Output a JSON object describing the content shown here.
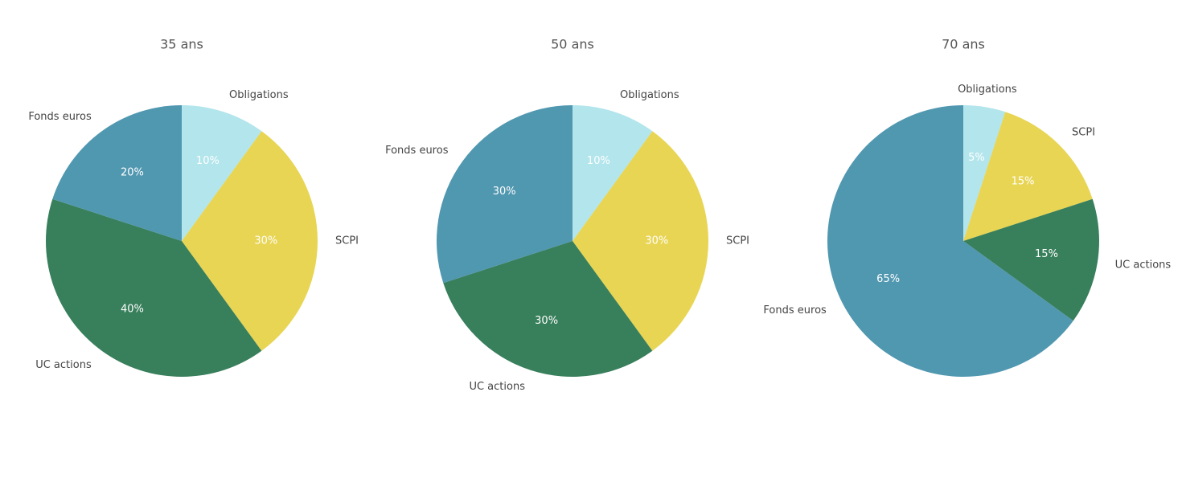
{
  "chart_data": [
    {
      "type": "pie",
      "title": "35 ans",
      "categories": [
        "Obligations",
        "SCPI",
        "UC actions",
        "Fonds euros"
      ],
      "values": [
        10,
        30,
        40,
        20
      ],
      "value_labels": [
        "10%",
        "30%",
        "40%",
        "20%"
      ],
      "colors": [
        "#b3e5ec",
        "#e8d554",
        "#387f5b",
        "#5097b0"
      ]
    },
    {
      "type": "pie",
      "title": "50 ans",
      "categories": [
        "Obligations",
        "SCPI",
        "UC actions",
        "Fonds euros"
      ],
      "values": [
        10,
        30,
        30,
        30
      ],
      "value_labels": [
        "10%",
        "30%",
        "30%",
        "30%"
      ],
      "colors": [
        "#b3e5ec",
        "#e8d554",
        "#387f5b",
        "#5097b0"
      ]
    },
    {
      "type": "pie",
      "title": "70 ans",
      "categories": [
        "Obligations",
        "SCPI",
        "UC actions",
        "Fonds euros"
      ],
      "values": [
        5,
        15,
        15,
        65
      ],
      "value_labels": [
        "5%",
        "15%",
        "15%",
        "65%"
      ],
      "colors": [
        "#b3e5ec",
        "#e8d554",
        "#387f5b",
        "#5097b0"
      ]
    }
  ]
}
